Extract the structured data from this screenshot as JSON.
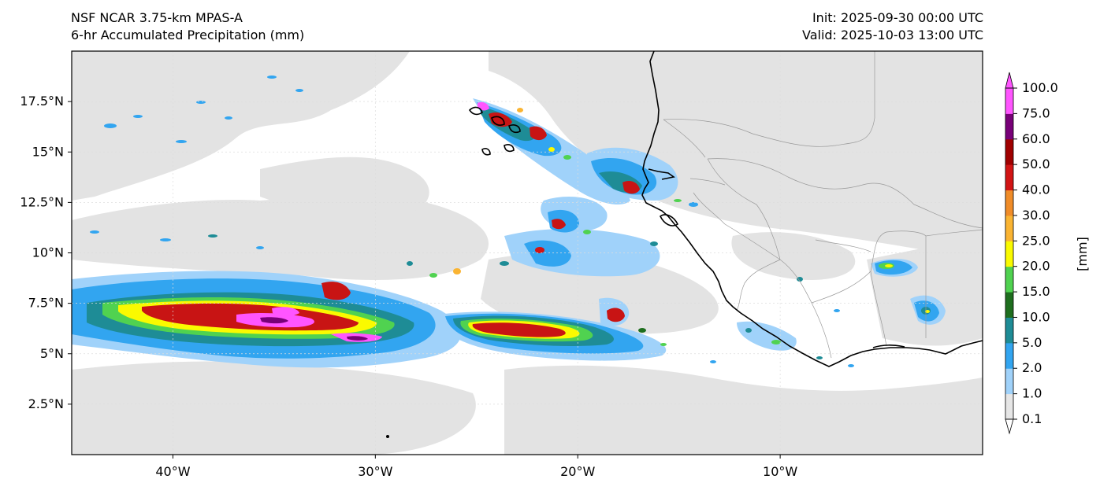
{
  "header": {
    "title_line1": "NSF NCAR 3.75-km MPAS-A",
    "title_line2": "6-hr Accumulated Precipitation (mm)",
    "init": "Init: 2025-09-30 00:00 UTC",
    "valid": "Valid: 2025-10-03 13:00 UTC"
  },
  "map": {
    "lon_range": [
      -45,
      0
    ],
    "lat_range": [
      0,
      20
    ],
    "lat_ticks": [
      {
        "value": 2.5,
        "label": "2.5°N"
      },
      {
        "value": 5,
        "label": "5°N"
      },
      {
        "value": 7.5,
        "label": "7.5°N"
      },
      {
        "value": 10,
        "label": "10°N"
      },
      {
        "value": 12.5,
        "label": "12.5°N"
      },
      {
        "value": 15,
        "label": "15°N"
      },
      {
        "value": 17.5,
        "label": "17.5°N"
      }
    ],
    "lon_ticks": [
      {
        "value": -40,
        "label": "40°W"
      },
      {
        "value": -30,
        "label": "30°W"
      },
      {
        "value": -20,
        "label": "20°W"
      },
      {
        "value": -10,
        "label": "10°W"
      }
    ]
  },
  "colorbar": {
    "unit_label": "[mm]",
    "levels": [
      "0.1",
      "1.0",
      "2.0",
      "5.0",
      "10.0",
      "15.0",
      "20.0",
      "25.0",
      "30.0",
      "40.0",
      "50.0",
      "60.0",
      "75.0",
      "100.0"
    ],
    "colors": [
      "#e6e6e6",
      "#a0d2fa",
      "#32a5f0",
      "#1e8c96",
      "#1e6e1e",
      "#50d250",
      "#fafa00",
      "#fab432",
      "#f08c28",
      "#d21414",
      "#a00000",
      "#780078",
      "#ff55ff"
    ]
  },
  "colors": {
    "trace": "#e3e3e3",
    "light_blue": "#a0d2fa",
    "blue": "#32a5f0",
    "teal": "#1e8c96",
    "green": "#1e6e1e",
    "lime": "#50d250",
    "yellow": "#fafa00",
    "orange": "#f08c28",
    "red": "#c81414",
    "dark_red": "#a00000",
    "purple": "#780078",
    "magenta": "#ff55ff",
    "coastline": "#000000",
    "border": "#999999"
  }
}
